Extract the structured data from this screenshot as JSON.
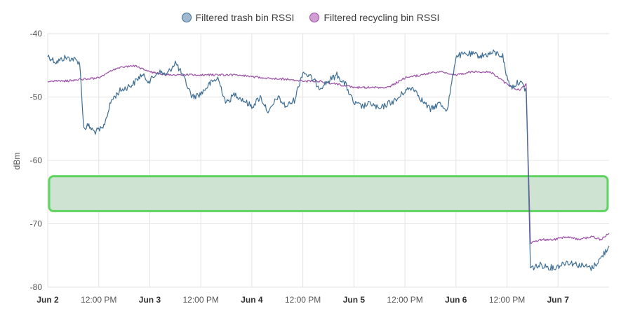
{
  "chart_data": {
    "type": "line",
    "ylabel": "dBm",
    "ylim": [
      -80,
      -40
    ],
    "yticks": [
      "-40",
      "-50",
      "-60",
      "-70",
      "-80"
    ],
    "xlim": [
      "2024-06-02T00:00",
      "2024-06-07T12:00"
    ],
    "xticks": [
      {
        "at": "2024-06-02T00:00",
        "label": "Jun 2",
        "bold": true
      },
      {
        "at": "2024-06-02T12:00",
        "label": "12:00 PM",
        "bold": false
      },
      {
        "at": "2024-06-03T00:00",
        "label": "Jun 3",
        "bold": true
      },
      {
        "at": "2024-06-03T12:00",
        "label": "12:00 PM",
        "bold": false
      },
      {
        "at": "2024-06-04T00:00",
        "label": "Jun 4",
        "bold": true
      },
      {
        "at": "2024-06-04T12:00",
        "label": "12:00 PM",
        "bold": false
      },
      {
        "at": "2024-06-05T00:00",
        "label": "Jun 5",
        "bold": true
      },
      {
        "at": "2024-06-05T12:00",
        "label": "12:00 PM",
        "bold": false
      },
      {
        "at": "2024-06-06T00:00",
        "label": "Jun 6",
        "bold": true
      },
      {
        "at": "2024-06-06T12:00",
        "label": "12:00 PM",
        "bold": false
      },
      {
        "at": "2024-06-07T00:00",
        "label": "Jun 7",
        "bold": true
      }
    ],
    "grid": true,
    "legend_position": "top-center",
    "highlight_band": {
      "y_from": -62.5,
      "y_to": -68,
      "fill": "#cfe3d2",
      "border": "#5fd35f"
    },
    "series": [
      {
        "name": "Filtered trash bin RSSI",
        "color": "#3f6f95",
        "fill": "#9fbad0",
        "points": [
          [
            "2024-06-02T00:00",
            -43.5
          ],
          [
            "2024-06-02T02:00",
            -44.5
          ],
          [
            "2024-06-02T04:00",
            -43.8
          ],
          [
            "2024-06-02T06:00",
            -44.0
          ],
          [
            "2024-06-02T07:30",
            -44.5
          ],
          [
            "2024-06-02T08:30",
            -55.0
          ],
          [
            "2024-06-02T09:30",
            -54.5
          ],
          [
            "2024-06-02T11:00",
            -55.5
          ],
          [
            "2024-06-02T13:00",
            -55.0
          ],
          [
            "2024-06-02T15:00",
            -50.5
          ],
          [
            "2024-06-02T17:00",
            -49.0
          ],
          [
            "2024-06-02T20:00",
            -48.0
          ],
          [
            "2024-06-02T22:00",
            -46.5
          ],
          [
            "2024-06-03T00:00",
            -47.5
          ],
          [
            "2024-06-03T02:00",
            -46.0
          ],
          [
            "2024-06-03T04:00",
            -46.5
          ],
          [
            "2024-06-03T06:00",
            -44.5
          ],
          [
            "2024-06-03T08:00",
            -47.0
          ],
          [
            "2024-06-03T10:00",
            -50.0
          ],
          [
            "2024-06-03T12:00",
            -49.5
          ],
          [
            "2024-06-03T14:00",
            -48.0
          ],
          [
            "2024-06-03T16:00",
            -47.0
          ],
          [
            "2024-06-03T18:00",
            -51.0
          ],
          [
            "2024-06-03T20:00",
            -49.5
          ],
          [
            "2024-06-03T22:00",
            -50.5
          ],
          [
            "2024-06-04T00:00",
            -51.5
          ],
          [
            "2024-06-04T02:00",
            -50.0
          ],
          [
            "2024-06-04T04:00",
            -52.5
          ],
          [
            "2024-06-04T06:00",
            -50.0
          ],
          [
            "2024-06-04T08:00",
            -51.5
          ],
          [
            "2024-06-04T10:00",
            -50.5
          ],
          [
            "2024-06-04T12:00",
            -46.0
          ],
          [
            "2024-06-04T14:00",
            -47.0
          ],
          [
            "2024-06-04T16:00",
            -48.5
          ],
          [
            "2024-06-04T18:00",
            -47.5
          ],
          [
            "2024-06-04T20:00",
            -46.5
          ],
          [
            "2024-06-04T22:00",
            -48.0
          ],
          [
            "2024-06-05T00:00",
            -51.0
          ],
          [
            "2024-06-05T02:00",
            -51.5
          ],
          [
            "2024-06-05T04:00",
            -51.0
          ],
          [
            "2024-06-05T06:00",
            -52.0
          ],
          [
            "2024-06-05T08:00",
            -51.0
          ],
          [
            "2024-06-05T10:00",
            -50.5
          ],
          [
            "2024-06-05T12:00",
            -49.0
          ],
          [
            "2024-06-05T14:00",
            -48.5
          ],
          [
            "2024-06-05T16:00",
            -50.5
          ],
          [
            "2024-06-05T18:00",
            -52.0
          ],
          [
            "2024-06-05T20:00",
            -51.0
          ],
          [
            "2024-06-05T22:00",
            -52.0
          ],
          [
            "2024-06-06T00:00",
            -43.5
          ],
          [
            "2024-06-06T03:00",
            -43.2
          ],
          [
            "2024-06-06T06:00",
            -43.5
          ],
          [
            "2024-06-06T09:00",
            -43.0
          ],
          [
            "2024-06-06T11:00",
            -43.5
          ],
          [
            "2024-06-06T12:00",
            -47.0
          ],
          [
            "2024-06-06T13:00",
            -48.5
          ],
          [
            "2024-06-06T14:00",
            -48.0
          ],
          [
            "2024-06-06T15:00",
            -47.5
          ],
          [
            "2024-06-06T16:00",
            -48.5
          ],
          [
            "2024-06-06T16:30",
            -49.0
          ],
          [
            "2024-06-06T17:00",
            -62.0
          ],
          [
            "2024-06-06T17:30",
            -77.0
          ],
          [
            "2024-06-06T20:00",
            -76.5
          ],
          [
            "2024-06-06T23:00",
            -77.0
          ],
          [
            "2024-06-07T02:00",
            -76.0
          ],
          [
            "2024-06-07T05:00",
            -76.5
          ],
          [
            "2024-06-07T08:00",
            -77.0
          ],
          [
            "2024-06-07T10:00",
            -75.5
          ],
          [
            "2024-06-07T12:00",
            -73.5
          ]
        ]
      },
      {
        "name": "Filtered recycling bin RSSI",
        "color": "#9b4fa6",
        "fill": "#cf9fd4",
        "points": [
          [
            "2024-06-02T00:00",
            -47.5
          ],
          [
            "2024-06-02T04:00",
            -47.5
          ],
          [
            "2024-06-02T08:00",
            -47.2
          ],
          [
            "2024-06-02T12:00",
            -47.0
          ],
          [
            "2024-06-02T16:00",
            -45.5
          ],
          [
            "2024-06-02T20:00",
            -45.0
          ],
          [
            "2024-06-03T00:00",
            -46.0
          ],
          [
            "2024-06-03T04:00",
            -46.5
          ],
          [
            "2024-06-03T08:00",
            -46.5
          ],
          [
            "2024-06-03T12:00",
            -46.5
          ],
          [
            "2024-06-03T16:00",
            -46.5
          ],
          [
            "2024-06-03T20:00",
            -46.5
          ],
          [
            "2024-06-04T00:00",
            -46.8
          ],
          [
            "2024-06-04T04:00",
            -47.0
          ],
          [
            "2024-06-04T08:00",
            -47.2
          ],
          [
            "2024-06-04T12:00",
            -47.5
          ],
          [
            "2024-06-04T16:00",
            -47.5
          ],
          [
            "2024-06-04T20:00",
            -48.0
          ],
          [
            "2024-06-05T00:00",
            -48.5
          ],
          [
            "2024-06-05T04:00",
            -48.5
          ],
          [
            "2024-06-05T08:00",
            -48.5
          ],
          [
            "2024-06-05T12:00",
            -47.0
          ],
          [
            "2024-06-05T16:00",
            -46.5
          ],
          [
            "2024-06-05T20:00",
            -46.0
          ],
          [
            "2024-06-06T00:00",
            -46.5
          ],
          [
            "2024-06-06T04:00",
            -46.0
          ],
          [
            "2024-06-06T08:00",
            -46.0
          ],
          [
            "2024-06-06T12:00",
            -48.0
          ],
          [
            "2024-06-06T15:00",
            -49.0
          ],
          [
            "2024-06-06T16:30",
            -48.0
          ],
          [
            "2024-06-06T17:00",
            -60.0
          ],
          [
            "2024-06-06T17:30",
            -73.0
          ],
          [
            "2024-06-06T20:00",
            -72.5
          ],
          [
            "2024-06-06T23:00",
            -72.5
          ],
          [
            "2024-06-07T02:00",
            -72.0
          ],
          [
            "2024-06-07T05:00",
            -72.5
          ],
          [
            "2024-06-07T08:00",
            -72.0
          ],
          [
            "2024-06-07T10:00",
            -72.5
          ],
          [
            "2024-06-07T12:00",
            -71.5
          ]
        ]
      }
    ]
  }
}
